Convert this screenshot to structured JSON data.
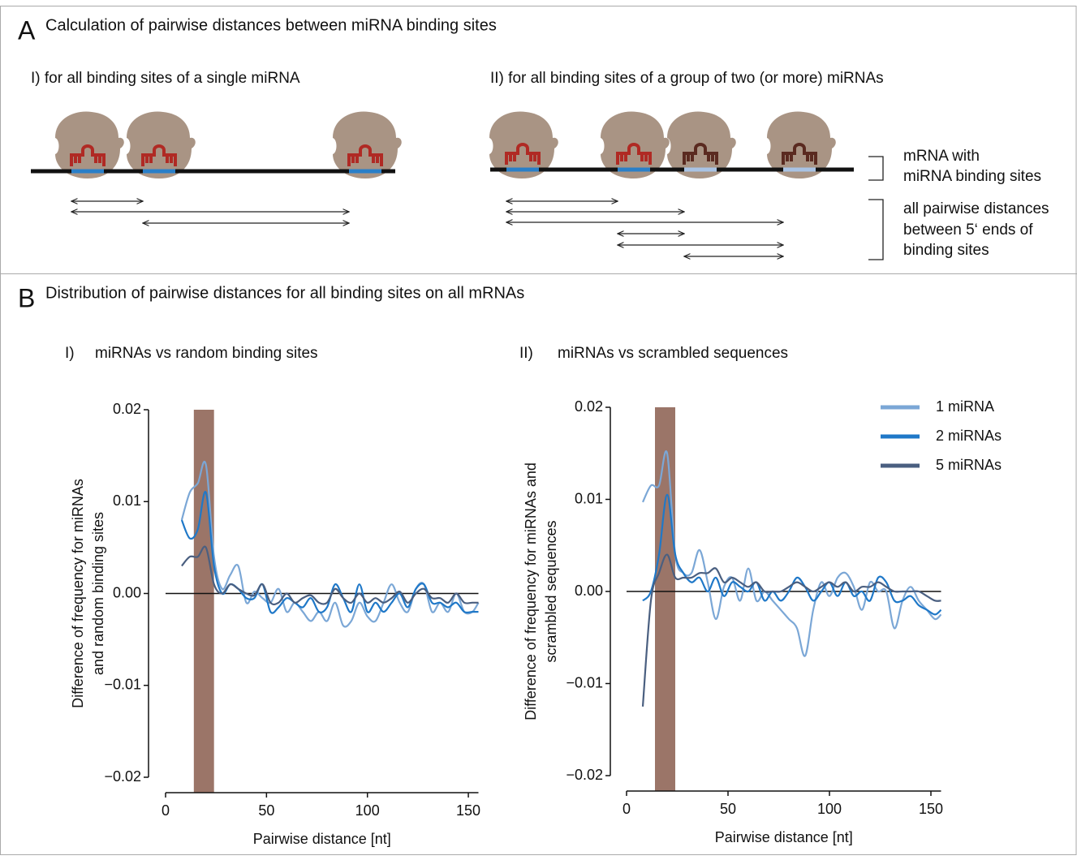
{
  "panel_a": {
    "letter": "A",
    "title": "Calculation of pairwise distances between miRNA binding sites",
    "subtitle_1": "I) for all binding sites of a single miRNA",
    "subtitle_2": "II) for all binding sites of a group of two (or more) miRNAs",
    "legend_mrna": [
      "mRNA with",
      "miRNA binding sites"
    ],
    "legend_distances": [
      "all pairwise distances",
      "between 5‘ ends of",
      "binding sites"
    ]
  },
  "panel_b": {
    "letter": "B",
    "title": "Distribution of pairwise distances for all binding sites on all mRNAs"
  },
  "chart_data": [
    {
      "type": "line",
      "panel_label": "I)",
      "title": "miRNAs vs random binding sites",
      "y_label": [
        "Difference of frequency for miRNAs",
        "and random binding sites"
      ],
      "x_label": "Pairwise distance [nt]",
      "x": [
        8,
        12,
        16,
        20,
        24,
        28,
        32,
        36,
        40,
        44,
        48,
        52,
        56,
        60,
        64,
        68,
        72,
        76,
        80,
        84,
        88,
        92,
        96,
        100,
        104,
        108,
        112,
        116,
        120,
        124,
        128,
        132,
        136,
        140,
        144,
        148,
        152,
        155
      ],
      "series": [
        {
          "color": "#7ba7d6",
          "values": [
            0.008,
            0.011,
            0.012,
            0.014,
            0.004,
            0.0005,
            0.002,
            0.003,
            -0.001,
            0.0002,
            -0.0005,
            -0.001,
            0.0005,
            -0.002,
            -0.001,
            -0.002,
            -0.003,
            -0.002,
            -0.003,
            -0.001,
            -0.0035,
            -0.003,
            -0.001,
            -0.0025,
            -0.003,
            -0.001,
            0.001,
            -0.001,
            -0.002,
            0.0005,
            0.001,
            -0.002,
            -0.001,
            -0.002,
            0,
            -0.002,
            -0.002,
            -0.001
          ]
        },
        {
          "color": "#1f78c8",
          "values": [
            0.008,
            0.006,
            0.007,
            0.011,
            0.003,
            0,
            0.001,
            0.0005,
            -0.0005,
            -0.0005,
            0.001,
            -0.002,
            -0.0015,
            -0.0005,
            -0.001,
            -0.0015,
            -0.0005,
            -0.002,
            -0.0015,
            0.001,
            -0.0005,
            -0.002,
            0.001,
            -0.002,
            -0.001,
            -0.002,
            -0.001,
            0,
            -0.0015,
            0.0005,
            0.001,
            -0.001,
            -0.001,
            -0.0015,
            -0.001,
            -0.002,
            -0.002,
            -0.002
          ]
        },
        {
          "color": "#4a5f80",
          "values": [
            0.003,
            0.004,
            0.004,
            0.005,
            0.001,
            0,
            0.001,
            0.0005,
            0,
            -0.0002,
            0.001,
            -0.001,
            -0.001,
            0,
            -0.001,
            -0.0005,
            -0.0002,
            -0.001,
            -0.001,
            0.0005,
            -0.0005,
            -0.001,
            0,
            -0.001,
            -0.0005,
            -0.001,
            -0.0005,
            0.0002,
            -0.001,
            0,
            0.0005,
            -0.0005,
            -0.0005,
            -0.001,
            0,
            -0.001,
            -0.001,
            -0.001
          ]
        }
      ],
      "highlight": {
        "range": [
          14,
          24
        ],
        "color": "#9b7568"
      },
      "zero_line": true,
      "xlim": [
        0,
        155
      ],
      "ylim": [
        -0.02,
        0.02
      ],
      "xticks": [
        0,
        50,
        100,
        150
      ],
      "yticks": [
        0.02,
        0.01,
        {
          "value": 0,
          "label": "0.00"
        },
        {
          "value": -0.01,
          "label": "−0.01"
        },
        {
          "value": -0.02,
          "label": "−0.02"
        }
      ]
    },
    {
      "type": "line",
      "panel_label": "II)",
      "title": "miRNAs vs scrambled sequences",
      "y_label": [
        "Difference of frequency for miRNAs and",
        "scrambled sequences"
      ],
      "x_label": "Pairwise distance [nt]",
      "x": [
        8,
        12,
        16,
        20,
        24,
        28,
        32,
        36,
        40,
        44,
        48,
        52,
        56,
        60,
        64,
        68,
        72,
        76,
        80,
        84,
        88,
        92,
        96,
        100,
        104,
        108,
        112,
        116,
        120,
        124,
        128,
        132,
        136,
        140,
        144,
        148,
        152,
        155
      ],
      "series": [
        {
          "name": "1 miRNA",
          "color": "#7ba7d6",
          "values": [
            0.0097,
            0.0115,
            0.0115,
            0.015,
            0.004,
            0.002,
            0.002,
            0.0045,
            0.001,
            -0.003,
            0.0005,
            0.0015,
            -0.001,
            0.0025,
            -0.001,
            0,
            -0.001,
            -0.002,
            -0.003,
            -0.004,
            -0.007,
            -0.002,
            0.001,
            -0.0005,
            0.0015,
            0.002,
            0.0005,
            -0.002,
            0.001,
            0,
            0,
            -0.004,
            -0.001,
            0.0005,
            -0.001,
            -0.002,
            -0.003,
            -0.0025
          ]
        },
        {
          "name": "2 miRNAs",
          "color": "#1f78c8",
          "values": [
            -0.001,
            0,
            0.004,
            0.0105,
            0.004,
            0.002,
            0.001,
            0.0015,
            0,
            0.0015,
            -0.0005,
            0.001,
            0.0005,
            0,
            0.001,
            -0.001,
            0,
            -0.001,
            0,
            0.0015,
            0.0005,
            -0.001,
            0,
            0.001,
            -0.0005,
            0.001,
            -0.0005,
            0,
            -0.001,
            0.0015,
            0.001,
            -0.001,
            -0.001,
            -0.0005,
            -0.0015,
            -0.002,
            -0.0025,
            -0.002
          ]
        },
        {
          "name": "5 miRNAs",
          "color": "#4a5f80",
          "values": [
            -0.0125,
            -0.001,
            0.002,
            0.004,
            0.0015,
            0.0015,
            0.0015,
            0.002,
            0.002,
            0.0025,
            0.001,
            0.0015,
            0.001,
            0.0005,
            0.001,
            0,
            0,
            0,
            0.0005,
            0.001,
            0.0005,
            0,
            0.0005,
            0.001,
            0.0005,
            0.001,
            0,
            0.0005,
            0.0005,
            0.001,
            0.0005,
            0,
            0,
            0,
            0,
            -0.0005,
            -0.001,
            -0.001
          ]
        }
      ],
      "highlight": {
        "range": [
          14,
          24
        ],
        "color": "#9b7568"
      },
      "zero_line": true,
      "legend": "upper right",
      "xlim": [
        0,
        155
      ],
      "ylim": [
        -0.02,
        0.02
      ],
      "xticks": [
        0,
        50,
        100,
        150
      ],
      "yticks": [
        0.02,
        0.01,
        {
          "value": 0,
          "label": "0.00"
        },
        {
          "value": -0.01,
          "label": "−0.01"
        },
        {
          "value": -0.02,
          "label": "−0.02"
        }
      ]
    }
  ]
}
